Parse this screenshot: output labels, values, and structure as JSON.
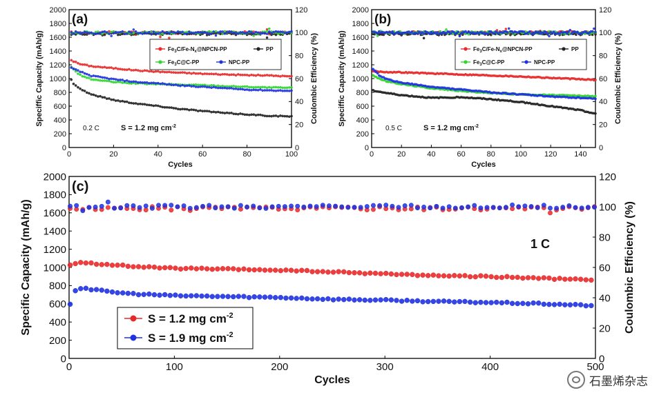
{
  "chart_data": [
    {
      "id": "a",
      "type": "line",
      "panel_label": "(a)",
      "xlabel": "Cycles",
      "ylabel": "Speciffic Capacity (mAh/g)",
      "ylabel_right": "Coulombic Efficiency (%)",
      "xlim": [
        0,
        100
      ],
      "ylim": [
        0,
        2000
      ],
      "ylim_right": [
        0,
        120
      ],
      "xticks": [
        "0",
        "20",
        "40",
        "60",
        "80",
        "100"
      ],
      "yticks": [
        "0",
        "200",
        "400",
        "600",
        "800",
        "1000",
        "1200",
        "1400",
        "1600",
        "1800",
        "2000"
      ],
      "yticks_right": [
        "0",
        "20",
        "40",
        "60",
        "80",
        "100",
        "120"
      ],
      "annotation_rate": "0.2 C",
      "annotation_loading": "S = 1.2 mg cm",
      "annotation_loading_sup": "-2",
      "legend_position": "top-right",
      "series": [
        {
          "name_main": "Fe",
          "name_sub": "3",
          "name_rest": "C/Fe-N",
          "name_sub2": "x",
          "name_end": "@NPCN-PP",
          "color": "#e8292a",
          "x": [
            0,
            2,
            5,
            10,
            20,
            30,
            40,
            50,
            60,
            70,
            80,
            90,
            100
          ],
          "y": [
            1290,
            1250,
            1210,
            1180,
            1150,
            1120,
            1100,
            1085,
            1070,
            1060,
            1050,
            1045,
            1030
          ]
        },
        {
          "name_main": "PP",
          "color": "#222222",
          "x": [
            0,
            2,
            5,
            10,
            20,
            30,
            40,
            50,
            60,
            70,
            80,
            90,
            100
          ],
          "y": [
            1030,
            930,
            850,
            770,
            690,
            640,
            600,
            560,
            530,
            500,
            480,
            460,
            450
          ]
        },
        {
          "name_main": "Fe",
          "name_sub": "3",
          "name_rest": "C@C-PP",
          "color": "#2fd62f",
          "x": [
            0,
            2,
            5,
            10,
            20,
            30,
            40,
            50,
            60,
            70,
            80,
            90,
            100
          ],
          "y": [
            1210,
            1130,
            1050,
            990,
            950,
            930,
            920,
            910,
            905,
            890,
            880,
            870,
            865
          ]
        },
        {
          "name_main": "NPC-PP",
          "color": "#1f32e0",
          "x": [
            0,
            2,
            5,
            10,
            20,
            30,
            40,
            50,
            60,
            70,
            80,
            90,
            100
          ],
          "y": [
            1170,
            1140,
            1100,
            1040,
            990,
            950,
            930,
            900,
            880,
            860,
            840,
            830,
            820
          ]
        }
      ],
      "efficiency": [
        {
          "color": "#e8292a",
          "value": 100
        },
        {
          "color": "#222222",
          "value": 99
        },
        {
          "color": "#2fd62f",
          "value": 100
        },
        {
          "color": "#1f32e0",
          "value": 100
        }
      ]
    },
    {
      "id": "b",
      "type": "line",
      "panel_label": "(b)",
      "xlabel": "Cycles",
      "ylabel": "Speciffic Capacity (mAh/g)",
      "ylabel_right": "Coulombic Efficiency (%)",
      "xlim": [
        0,
        150
      ],
      "ylim": [
        0,
        2000
      ],
      "ylim_right": [
        0,
        120
      ],
      "xticks": [
        "0",
        "20",
        "40",
        "60",
        "80",
        "100",
        "120",
        "140"
      ],
      "yticks": [
        "0",
        "200",
        "400",
        "600",
        "800",
        "1000",
        "1200",
        "1400",
        "1600",
        "1800",
        "2000"
      ],
      "yticks_right": [
        "0",
        "20",
        "40",
        "60",
        "80",
        "100",
        "120"
      ],
      "annotation_rate": "0.5 C",
      "annotation_loading": "S = 1.2 mg cm",
      "annotation_loading_sup": "-2",
      "legend_position": "top-right",
      "series": [
        {
          "name_main": "Fe",
          "name_sub": "3",
          "name_rest": "C/Fe-N",
          "name_sub2": "x",
          "name_end": "@NPCN-PP",
          "color": "#e8292a",
          "x": [
            0,
            5,
            10,
            20,
            40,
            60,
            80,
            100,
            120,
            140,
            150
          ],
          "y": [
            1110,
            1100,
            1095,
            1090,
            1075,
            1060,
            1045,
            1030,
            1010,
            990,
            980
          ]
        },
        {
          "name_main": "PP",
          "color": "#222222",
          "x": [
            0,
            5,
            10,
            20,
            40,
            60,
            80,
            100,
            120,
            140,
            150
          ],
          "y": [
            830,
            810,
            790,
            760,
            720,
            730,
            700,
            660,
            600,
            540,
            490
          ]
        },
        {
          "name_main": "Fe",
          "name_sub": "3",
          "name_rest": "C@C-PP",
          "color": "#2fd62f",
          "x": [
            0,
            5,
            10,
            20,
            40,
            60,
            80,
            100,
            120,
            140,
            150
          ],
          "y": [
            1060,
            1000,
            960,
            920,
            860,
            820,
            790,
            770,
            760,
            750,
            740
          ]
        },
        {
          "name_main": "NPC-PP",
          "color": "#1f32e0",
          "x": [
            0,
            5,
            10,
            20,
            40,
            60,
            80,
            100,
            120,
            140,
            150
          ],
          "y": [
            1150,
            1050,
            990,
            940,
            880,
            840,
            800,
            770,
            740,
            720,
            710
          ]
        }
      ],
      "efficiency": [
        {
          "color": "#e8292a",
          "value": 100
        },
        {
          "color": "#222222",
          "value": 99
        },
        {
          "color": "#2fd62f",
          "value": 100
        },
        {
          "color": "#1f32e0",
          "value": 100
        }
      ]
    },
    {
      "id": "c",
      "type": "scatter",
      "panel_label": "(c)",
      "xlabel": "Cycles",
      "ylabel": "Specific Capacity (mAh/g)",
      "ylabel_right": "Coulombic Efficiency (%)",
      "xlim": [
        0,
        500
      ],
      "ylim": [
        0,
        2000
      ],
      "ylim_right": [
        0,
        120
      ],
      "xticks": [
        "0",
        "100",
        "200",
        "300",
        "400",
        "500"
      ],
      "yticks": [
        "0",
        "200",
        "400",
        "600",
        "800",
        "1000",
        "1200",
        "1400",
        "1600",
        "1800",
        "2000"
      ],
      "yticks_right": [
        "0",
        "20",
        "40",
        "60",
        "80",
        "100",
        "120"
      ],
      "annotation_rate": "1 C",
      "legend_position": "bottom-left",
      "series": [
        {
          "name_main": "S = 1.2 mg cm",
          "name_sup": "-2",
          "color": "#e8292a",
          "x": [
            0,
            5,
            10,
            20,
            40,
            60,
            80,
            100,
            150,
            200,
            250,
            300,
            350,
            400,
            450,
            500
          ],
          "y": [
            1020,
            1040,
            1050,
            1045,
            1030,
            1010,
            1000,
            990,
            980,
            970,
            950,
            930,
            910,
            900,
            880,
            860
          ]
        },
        {
          "name_main": "S = 1.9 mg cm",
          "name_sup": "-2",
          "color": "#1f32e0",
          "x": [
            0,
            2,
            5,
            10,
            15,
            20,
            40,
            60,
            80,
            100,
            150,
            200,
            250,
            300,
            350,
            400,
            450,
            500
          ],
          "y": [
            560,
            640,
            740,
            770,
            775,
            760,
            730,
            710,
            700,
            690,
            680,
            670,
            650,
            640,
            625,
            615,
            600,
            580
          ]
        }
      ],
      "efficiency": [
        {
          "color": "#e8292a",
          "value": 99
        },
        {
          "color": "#1f32e0",
          "value": 100
        }
      ]
    }
  ],
  "watermark": {
    "text": "石墨烯杂志"
  }
}
